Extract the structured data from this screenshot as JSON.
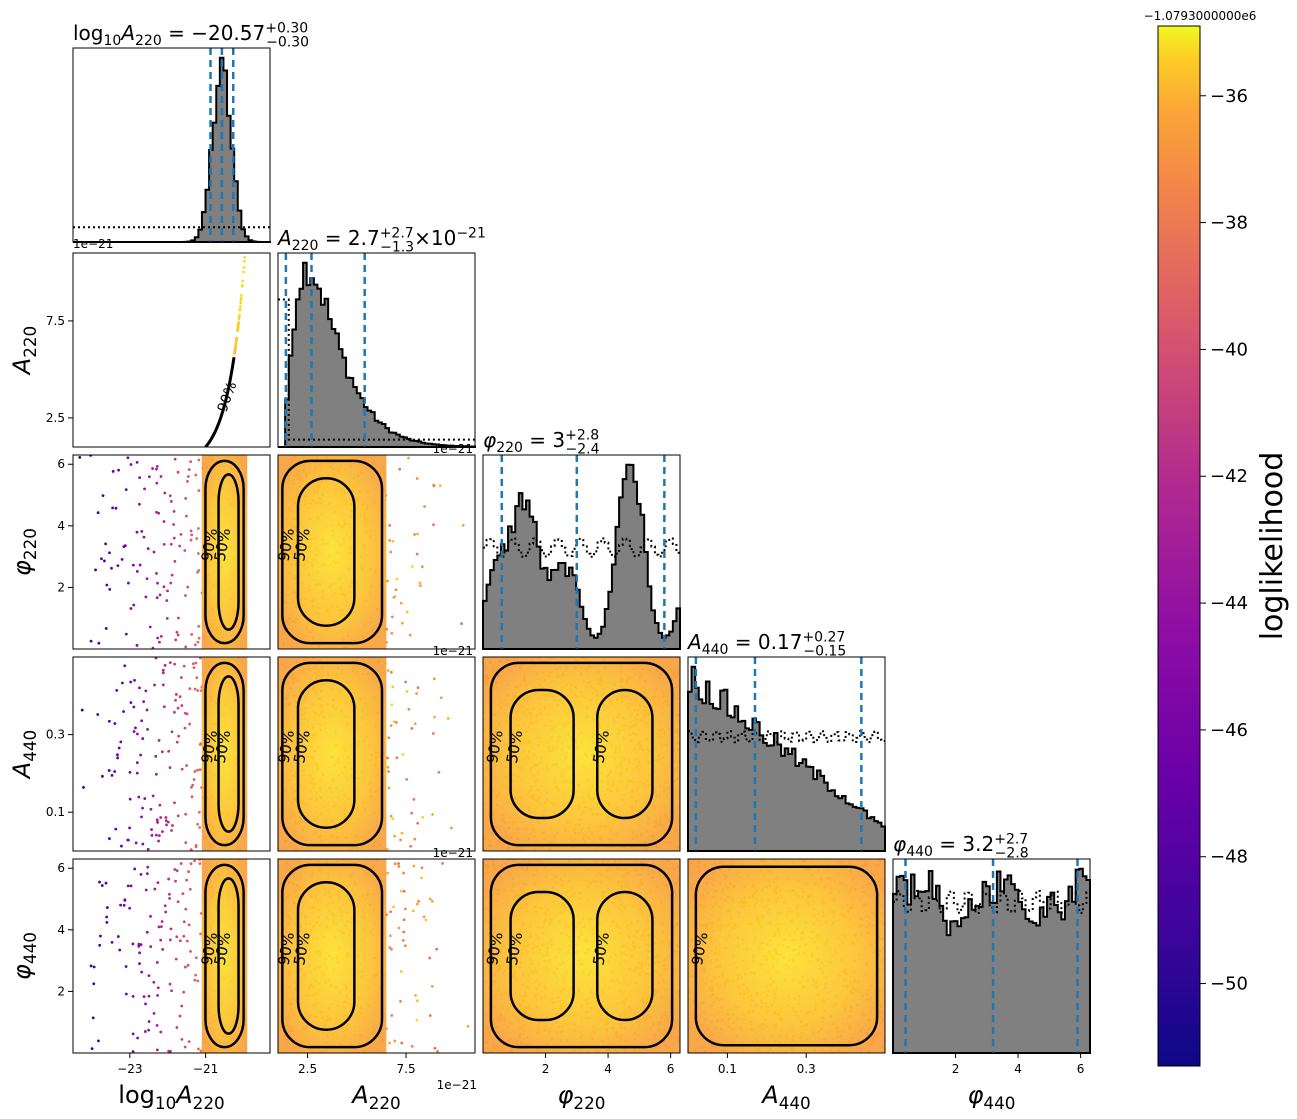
{
  "figure": {
    "colorbar_offset": "−1.0793000000e6",
    "sci_offset": "1e−21"
  },
  "chart_data": {
    "type": "scatter",
    "layout": "corner plot",
    "parameters": [
      {
        "key": "logA220",
        "label": "log10A220",
        "range": [
          -24.5,
          -19.3
        ],
        "ticks": [
          -23,
          -21
        ],
        "tick_labels": [
          "−23",
          "−21"
        ],
        "title": {
          "pre": "log",
          "sub": "10",
          "sym": "A",
          "sym_sub": "220",
          "value": " = −20.57",
          "up": "+0.30",
          "down": "−0.30",
          "tail": ""
        },
        "quantiles": [
          -20.87,
          -20.57,
          -20.27
        ]
      },
      {
        "key": "A220",
        "label": "A220",
        "range": [
          1.0,
          11.0
        ],
        "ticks": [
          2.5,
          7.5
        ],
        "tick_labels": [
          "2.5",
          "7.5"
        ],
        "title": {
          "pre": "",
          "sub": "",
          "sym": "A",
          "sym_sub": "220",
          "value": " = 2.7",
          "up": "+2.7",
          "down": "−1.3",
          "tail": "×10−21"
        },
        "quantiles": [
          1.4,
          2.7,
          5.4
        ]
      },
      {
        "key": "phi220",
        "label": "phi220",
        "range": [
          0.0,
          6.3
        ],
        "ticks": [
          2,
          4,
          6
        ],
        "tick_labels": [
          "2",
          "4",
          "6"
        ],
        "title": {
          "pre": "",
          "sub": "",
          "sym": "φ",
          "sym_sub": "220",
          "value": " = 3",
          "up": "+2.8",
          "down": "−2.4",
          "tail": ""
        },
        "quantiles": [
          0.6,
          3.0,
          5.8
        ]
      },
      {
        "key": "A440",
        "label": "A440",
        "range": [
          0.0,
          0.5
        ],
        "ticks": [
          0.1,
          0.3
        ],
        "tick_labels": [
          "0.1",
          "0.3"
        ],
        "title": {
          "pre": "",
          "sub": "",
          "sym": "A",
          "sym_sub": "440",
          "value": " = 0.17",
          "up": "+0.27",
          "down": "−0.15",
          "tail": ""
        },
        "quantiles": [
          0.02,
          0.17,
          0.44
        ]
      },
      {
        "key": "phi440",
        "label": "phi440",
        "range": [
          0.0,
          6.3
        ],
        "ticks": [
          2,
          4,
          6
        ],
        "tick_labels": [
          "2",
          "4",
          "6"
        ],
        "title": {
          "pre": "",
          "sub": "",
          "sym": "φ",
          "sym_sub": "440",
          "value": " = 3.2",
          "up": "+2.7",
          "down": "−2.8",
          "tail": ""
        },
        "quantiles": [
          0.4,
          3.2,
          5.9
        ]
      }
    ],
    "axis_labels": {
      "logA220": {
        "pre": "log",
        "sub": "10",
        "sym": "A",
        "sym_sub": "220"
      },
      "A220": {
        "pre": "",
        "sub": "",
        "sym": "A",
        "sym_sub": "220"
      },
      "phi220": {
        "pre": "",
        "sub": "",
        "sym": "φ",
        "sym_sub": "220"
      },
      "A440": {
        "pre": "",
        "sub": "",
        "sym": "A",
        "sym_sub": "440"
      },
      "phi440": {
        "pre": "",
        "sub": "",
        "sym": "φ",
        "sym_sub": "440"
      }
    },
    "row_ticks": {
      "A220": {
        "ticks": [
          2.5,
          7.5
        ],
        "tick_labels": [
          "2.5",
          "7.5"
        ]
      },
      "phi220": {
        "ticks": [
          2,
          4,
          6
        ],
        "tick_labels": [
          "2",
          "4",
          "6"
        ]
      },
      "A440": {
        "ticks": [
          0.1,
          0.3
        ],
        "tick_labels": [
          "0.1",
          "0.3"
        ]
      },
      "phi440": {
        "ticks": [
          2,
          4,
          6
        ],
        "tick_labels": [
          "2",
          "4",
          "6"
        ]
      }
    },
    "contour_labels": [
      "50%",
      "90%"
    ],
    "colorbar": {
      "label": "loglikelihood",
      "cmap": "plasma",
      "range": [
        -51.3,
        -34.9
      ],
      "ticks": [
        -36,
        -38,
        -40,
        -42,
        -44,
        -46,
        -48,
        -50
      ],
      "tick_labels": [
        "−36",
        "−38",
        "−40",
        "−42",
        "−44",
        "−46",
        "−48",
        "−50"
      ]
    },
    "histogram_style": {
      "fill": "#808080",
      "edge": "#000000",
      "quantile_line": "#1f77b4",
      "prior_line": "dotted"
    }
  }
}
